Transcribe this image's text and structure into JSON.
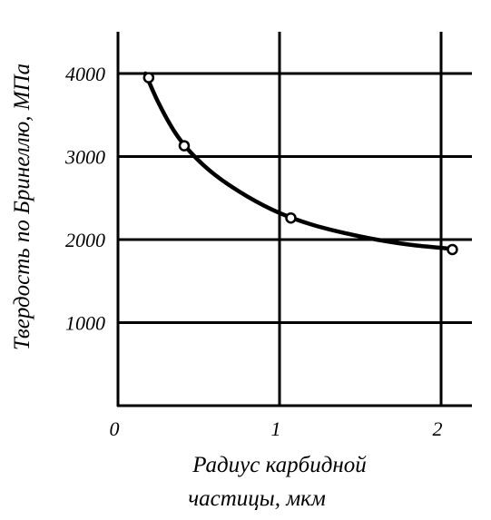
{
  "chart_data": {
    "type": "line",
    "title": "",
    "xlabel": "Радиус карбидной частицы, мкм",
    "xlabel_lines": [
      "Радиус карбидной",
      "частицы, мкм"
    ],
    "ylabel": "Твердость по Бринеллю, МПа",
    "xlim": [
      0,
      2.2
    ],
    "ylim": [
      0,
      4500
    ],
    "xticks": [
      0,
      1,
      2
    ],
    "xtick_labels": [
      "0",
      "1",
      "2"
    ],
    "yticks": [
      1000,
      2000,
      3000,
      4000
    ],
    "ytick_labels": [
      "1000",
      "2000",
      "3000",
      "4000"
    ],
    "grid": true,
    "series": [
      {
        "points": [
          {
            "x": 0.19,
            "y": 3950
          },
          {
            "x": 0.41,
            "y": 3130
          },
          {
            "x": 1.07,
            "y": 2260
          },
          {
            "x": 2.07,
            "y": 1880
          }
        ],
        "curve": [
          {
            "x": 0.17,
            "y": 4000
          },
          {
            "x": 0.25,
            "y": 3650
          },
          {
            "x": 0.35,
            "y": 3300
          },
          {
            "x": 0.45,
            "y": 3050
          },
          {
            "x": 0.6,
            "y": 2780
          },
          {
            "x": 0.8,
            "y": 2520
          },
          {
            "x": 1.0,
            "y": 2320
          },
          {
            "x": 1.2,
            "y": 2180
          },
          {
            "x": 1.4,
            "y": 2080
          },
          {
            "x": 1.6,
            "y": 2000
          },
          {
            "x": 1.8,
            "y": 1940
          },
          {
            "x": 2.0,
            "y": 1900
          },
          {
            "x": 2.07,
            "y": 1890
          }
        ]
      }
    ]
  },
  "colors": {
    "line": "#000000",
    "marker_fill": "#ffffff",
    "background": "#ffffff"
  }
}
